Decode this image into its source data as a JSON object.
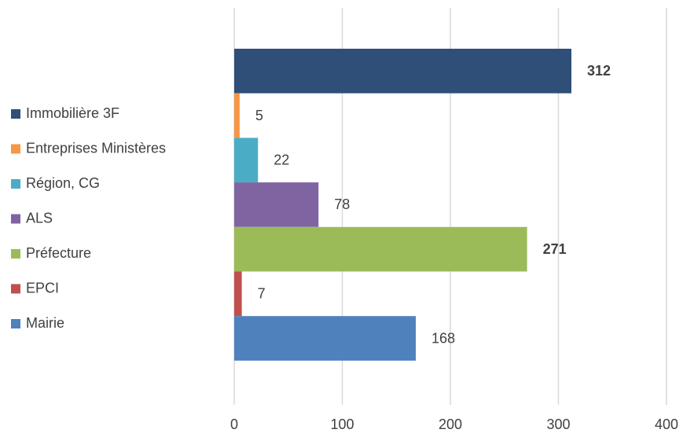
{
  "chart_data": {
    "type": "bar",
    "orientation": "horizontal",
    "series": [
      {
        "name": "Immobilière 3F",
        "color": "#2f4f78",
        "values": [
          312
        ],
        "bold": true
      },
      {
        "name": "Entreprises Ministères",
        "color": "#f79646",
        "values": [
          5
        ]
      },
      {
        "name": "Région, CG",
        "color": "#4bacc6",
        "values": [
          22
        ]
      },
      {
        "name": "ALS",
        "color": "#8064a2",
        "values": [
          78
        ]
      },
      {
        "name": "Préfecture",
        "color": "#9bbb59",
        "values": [
          271
        ],
        "bold": true
      },
      {
        "name": "EPCI",
        "color": "#c0504d",
        "values": [
          7
        ]
      },
      {
        "name": "Mairie",
        "color": "#4f81bd",
        "values": [
          168
        ]
      }
    ],
    "xlim": [
      0,
      400
    ],
    "xticks": [
      0,
      100,
      200,
      300,
      400
    ],
    "grid": true,
    "legend": "left"
  }
}
